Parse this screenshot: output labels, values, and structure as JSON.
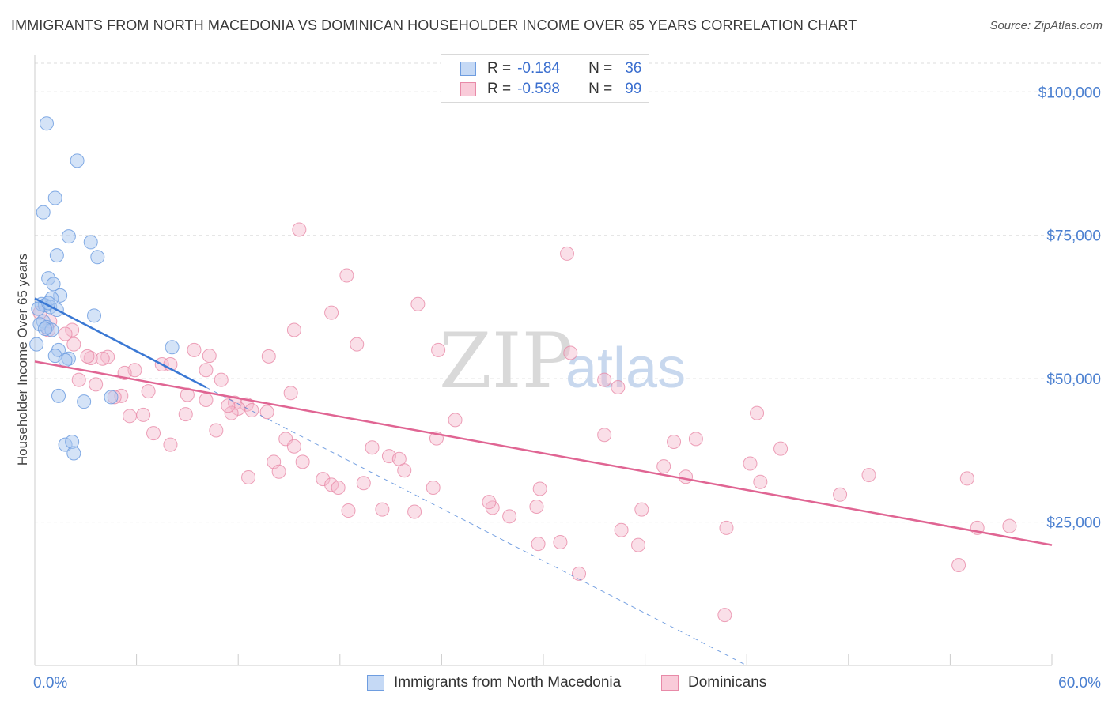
{
  "title": "IMMIGRANTS FROM NORTH MACEDONIA VS DOMINICAN HOUSEHOLDER INCOME OVER 65 YEARS CORRELATION CHART",
  "source": "Source: ZipAtlas.com",
  "legend": {
    "rows": [
      {
        "r_label": "R =",
        "r_value": "-0.184",
        "n_label": "N =",
        "n_value": "36"
      },
      {
        "r_label": "R =",
        "r_value": "-0.598",
        "n_label": "N =",
        "n_value": "99"
      }
    ]
  },
  "bottom_legend": [
    "Immigrants from North Macedonia",
    "Dominicans"
  ],
  "colors": {
    "blue_fill": "#aac8f0",
    "blue_stroke": "#6e9de0",
    "blue_line": "#3a78d4",
    "pink_fill": "#f5b8cc",
    "pink_stroke": "#e88aa8",
    "pink_line": "#e06593",
    "tick_text": "#4a7fd0",
    "grid": "#dddddd"
  },
  "chart_data": {
    "type": "scatter",
    "title": "IMMIGRANTS FROM NORTH MACEDONIA VS DOMINICAN HOUSEHOLDER INCOME OVER 65 YEARS CORRELATION CHART",
    "xlabel": "",
    "ylabel": "Householder Income Over 65 years",
    "xlim": [
      0,
      60
    ],
    "ylim": [
      0,
      105000
    ],
    "x_tick_labels": [
      "0.0%",
      "60.0%"
    ],
    "y_ticks": [
      25000,
      50000,
      75000,
      100000
    ],
    "y_tick_labels": [
      "$25,000",
      "$50,000",
      "$75,000",
      "$100,000"
    ],
    "watermark": {
      "left": "ZIP",
      "right": "atlas"
    },
    "series": [
      {
        "name": "Immigrants from North Macedonia",
        "points": [
          [
            0.7,
            94500
          ],
          [
            2.5,
            88000
          ],
          [
            1.2,
            81500
          ],
          [
            0.5,
            79000
          ],
          [
            2.0,
            74800
          ],
          [
            3.3,
            73800
          ],
          [
            1.3,
            71500
          ],
          [
            3.7,
            71200
          ],
          [
            0.8,
            67500
          ],
          [
            1.1,
            66500
          ],
          [
            1.5,
            64500
          ],
          [
            1.0,
            64000
          ],
          [
            0.4,
            63000
          ],
          [
            0.6,
            62800
          ],
          [
            0.9,
            62500
          ],
          [
            0.2,
            62200
          ],
          [
            1.3,
            62000
          ],
          [
            3.5,
            61000
          ],
          [
            0.5,
            60000
          ],
          [
            0.3,
            59500
          ],
          [
            0.7,
            59000
          ],
          [
            1.0,
            58500
          ],
          [
            8.1,
            55500
          ],
          [
            0.1,
            56000
          ],
          [
            1.4,
            55000
          ],
          [
            1.2,
            54000
          ],
          [
            2.0,
            53500
          ],
          [
            1.8,
            53200
          ],
          [
            4.5,
            46800
          ],
          [
            1.4,
            47000
          ],
          [
            2.9,
            46000
          ],
          [
            1.8,
            38500
          ],
          [
            2.2,
            39000
          ],
          [
            2.3,
            37000
          ],
          [
            0.6,
            58700
          ],
          [
            0.8,
            63200
          ]
        ],
        "trend": {
          "x0": 0.0,
          "y0": 64000,
          "x1": 10.1,
          "y1": 48500,
          "dash_x1": 42.0,
          "dash_y1": 0
        }
      },
      {
        "name": "Dominicans",
        "points": [
          [
            15.6,
            76000
          ],
          [
            31.4,
            71800
          ],
          [
            18.4,
            68000
          ],
          [
            22.6,
            63000
          ],
          [
            17.5,
            61500
          ],
          [
            0.3,
            61500
          ],
          [
            0.9,
            60000
          ],
          [
            2.2,
            58500
          ],
          [
            0.8,
            58500
          ],
          [
            15.3,
            58500
          ],
          [
            1.8,
            57800
          ],
          [
            2.3,
            56000
          ],
          [
            19.0,
            56000
          ],
          [
            23.8,
            55000
          ],
          [
            9.4,
            55000
          ],
          [
            10.3,
            54000
          ],
          [
            13.8,
            53900
          ],
          [
            4.3,
            53800
          ],
          [
            3.3,
            53600
          ],
          [
            4.0,
            53500
          ],
          [
            31.6,
            54500
          ],
          [
            7.5,
            52500
          ],
          [
            8.0,
            52500
          ],
          [
            10.1,
            51500
          ],
          [
            5.9,
            51500
          ],
          [
            5.3,
            51000
          ],
          [
            11.0,
            49800
          ],
          [
            2.6,
            49800
          ],
          [
            3.6,
            49000
          ],
          [
            33.6,
            49800
          ],
          [
            34.4,
            48500
          ],
          [
            15.1,
            47500
          ],
          [
            6.7,
            47800
          ],
          [
            9.0,
            47200
          ],
          [
            5.1,
            47000
          ],
          [
            4.7,
            46800
          ],
          [
            10.1,
            46300
          ],
          [
            11.8,
            45800
          ],
          [
            12.5,
            45500
          ],
          [
            12.0,
            44800
          ],
          [
            12.8,
            44500
          ],
          [
            11.6,
            44000
          ],
          [
            8.9,
            43800
          ],
          [
            6.4,
            43700
          ],
          [
            42.6,
            44000
          ],
          [
            24.8,
            42800
          ],
          [
            10.7,
            41000
          ],
          [
            7.0,
            40500
          ],
          [
            33.6,
            40200
          ],
          [
            23.7,
            39600
          ],
          [
            14.8,
            39500
          ],
          [
            39.0,
            39500
          ],
          [
            37.7,
            39000
          ],
          [
            15.3,
            38200
          ],
          [
            19.9,
            38000
          ],
          [
            8.0,
            38500
          ],
          [
            44.0,
            37800
          ],
          [
            20.9,
            36500
          ],
          [
            21.5,
            36000
          ],
          [
            14.1,
            35500
          ],
          [
            15.8,
            35500
          ],
          [
            42.2,
            35200
          ],
          [
            37.1,
            34700
          ],
          [
            21.8,
            34000
          ],
          [
            14.4,
            33800
          ],
          [
            49.2,
            33200
          ],
          [
            38.4,
            32900
          ],
          [
            55.0,
            32600
          ],
          [
            12.6,
            32800
          ],
          [
            17.0,
            32500
          ],
          [
            42.8,
            32000
          ],
          [
            19.4,
            31800
          ],
          [
            17.5,
            31500
          ],
          [
            17.9,
            31000
          ],
          [
            23.5,
            31000
          ],
          [
            29.8,
            30800
          ],
          [
            47.5,
            29800
          ],
          [
            29.6,
            27700
          ],
          [
            35.8,
            27200
          ],
          [
            27.0,
            27500
          ],
          [
            18.5,
            27000
          ],
          [
            20.5,
            27200
          ],
          [
            22.4,
            26800
          ],
          [
            28.0,
            26000
          ],
          [
            34.6,
            23600
          ],
          [
            40.8,
            24000
          ],
          [
            55.6,
            24000
          ],
          [
            57.5,
            24300
          ],
          [
            31.0,
            21500
          ],
          [
            29.7,
            21200
          ],
          [
            35.6,
            21000
          ],
          [
            32.1,
            16000
          ],
          [
            54.5,
            17500
          ],
          [
            40.7,
            8800
          ],
          [
            3.1,
            53900
          ],
          [
            13.7,
            44200
          ],
          [
            26.8,
            28500
          ],
          [
            11.4,
            45300
          ],
          [
            5.6,
            43500
          ]
        ],
        "trend": {
          "x0": 0.0,
          "y0": 53000,
          "x1": 60.0,
          "y1": 21000
        }
      }
    ]
  }
}
